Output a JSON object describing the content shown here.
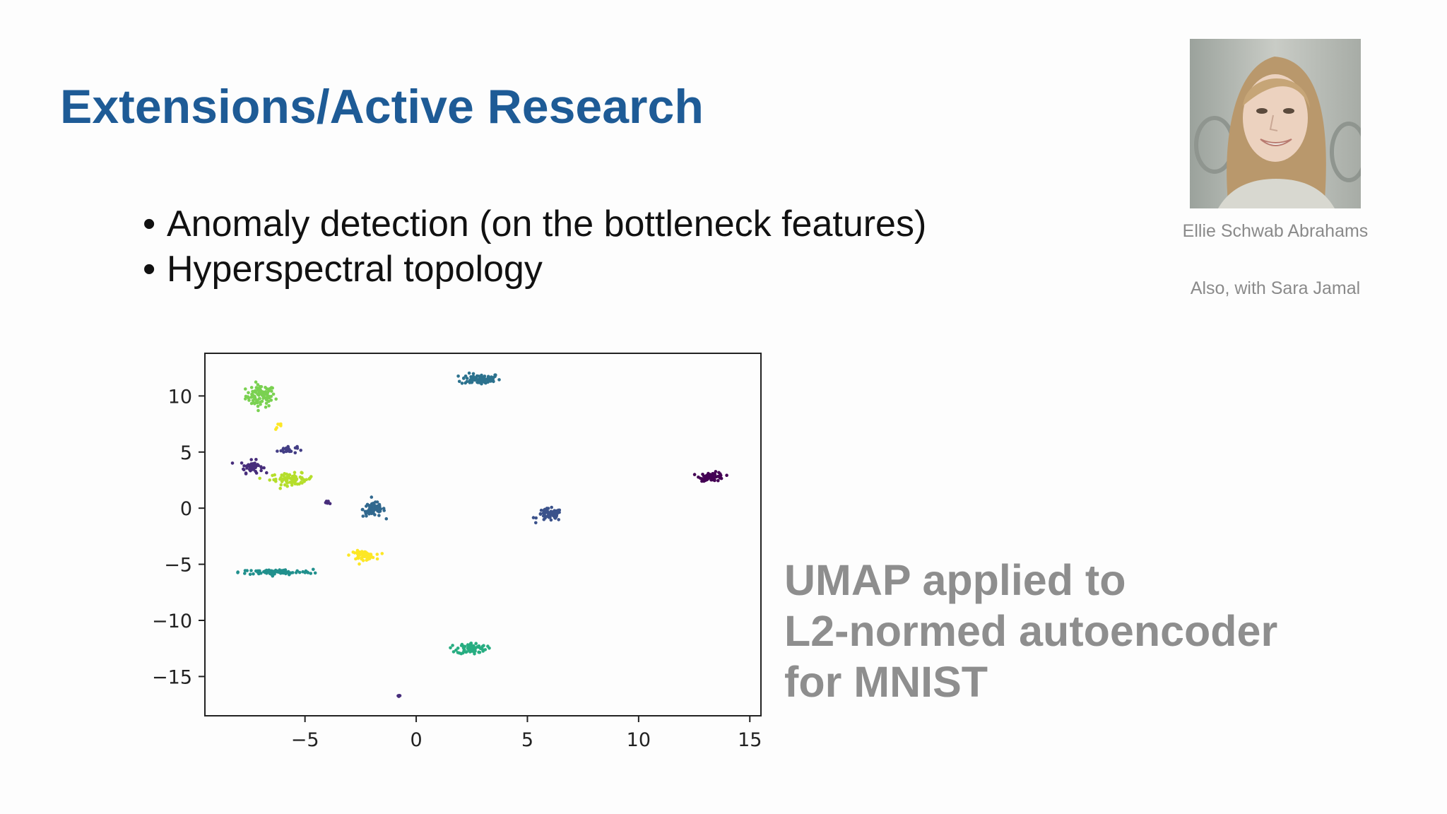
{
  "slide": {
    "title": "Extensions/Active Research",
    "bullets": [
      "Anomaly detection (on the bottleneck features)",
      "Hyperspectral topology"
    ]
  },
  "presenter": {
    "name": "Ellie Schwab Abrahams",
    "note": "Also, with Sara Jamal"
  },
  "caption": {
    "lines": [
      "UMAP applied to",
      "L2-normed autoencoder",
      "for MNIST"
    ]
  },
  "colors": {
    "title": "#1e5b96",
    "caption": "#8e8e8e"
  },
  "chart_data": {
    "type": "scatter",
    "title": "",
    "xlabel": "",
    "ylabel": "",
    "xlim": [
      -9.5,
      15.5
    ],
    "ylim": [
      -18.5,
      13.8
    ],
    "xticks": [
      -5,
      0,
      5,
      10,
      15
    ],
    "yticks": [
      10,
      5,
      0,
      -5,
      -10,
      -15
    ],
    "xtick_labels": [
      "−5",
      "0",
      "5",
      "10",
      "15"
    ],
    "ytick_labels": [
      "10",
      "5",
      "0",
      "−5",
      "−10",
      "−15"
    ],
    "grid": false,
    "clusters": [
      {
        "color": "#7ad151",
        "center": [
          -7.0,
          10.0
        ],
        "spread": [
          0.6,
          0.9
        ],
        "count": 90
      },
      {
        "color": "#2c728e",
        "center": [
          2.9,
          11.5
        ],
        "spread": [
          0.8,
          0.45
        ],
        "count": 80
      },
      {
        "color": "#472d7b",
        "center": [
          -7.4,
          3.7
        ],
        "spread": [
          0.45,
          0.5
        ],
        "count": 45
      },
      {
        "color": "#433e85",
        "center": [
          -5.8,
          5.2
        ],
        "spread": [
          0.4,
          0.3
        ],
        "count": 25
      },
      {
        "color": "#b5de2b",
        "center": [
          -5.6,
          2.6
        ],
        "spread": [
          0.9,
          0.45
        ],
        "count": 70
      },
      {
        "color": "#31688e",
        "center": [
          -1.9,
          -0.1
        ],
        "spread": [
          0.45,
          0.6
        ],
        "count": 70
      },
      {
        "color": "#3b528b",
        "center": [
          6.0,
          -0.6
        ],
        "spread": [
          0.5,
          0.5
        ],
        "count": 65
      },
      {
        "color": "#440154",
        "center": [
          13.3,
          2.8
        ],
        "spread": [
          0.5,
          0.35
        ],
        "count": 70
      },
      {
        "color": "#fde725",
        "center": [
          -2.4,
          -4.2
        ],
        "spread": [
          0.5,
          0.35
        ],
        "count": 55
      },
      {
        "color": "#21908d",
        "center": [
          -6.3,
          -5.7
        ],
        "spread": [
          1.5,
          0.22
        ],
        "count": 90
      },
      {
        "color": "#27ad81",
        "center": [
          2.5,
          -12.5
        ],
        "spread": [
          0.6,
          0.45
        ],
        "count": 75
      },
      {
        "color": "#472d7b",
        "center": [
          -0.8,
          -16.7
        ],
        "spread": [
          0.1,
          0.12
        ],
        "count": 4
      },
      {
        "color": "#fde725",
        "center": [
          -6.2,
          7.2
        ],
        "spread": [
          0.2,
          0.5
        ],
        "count": 6
      },
      {
        "color": "#472d7b",
        "center": [
          -4.0,
          0.5
        ],
        "spread": [
          0.2,
          0.3
        ],
        "count": 5
      }
    ]
  }
}
